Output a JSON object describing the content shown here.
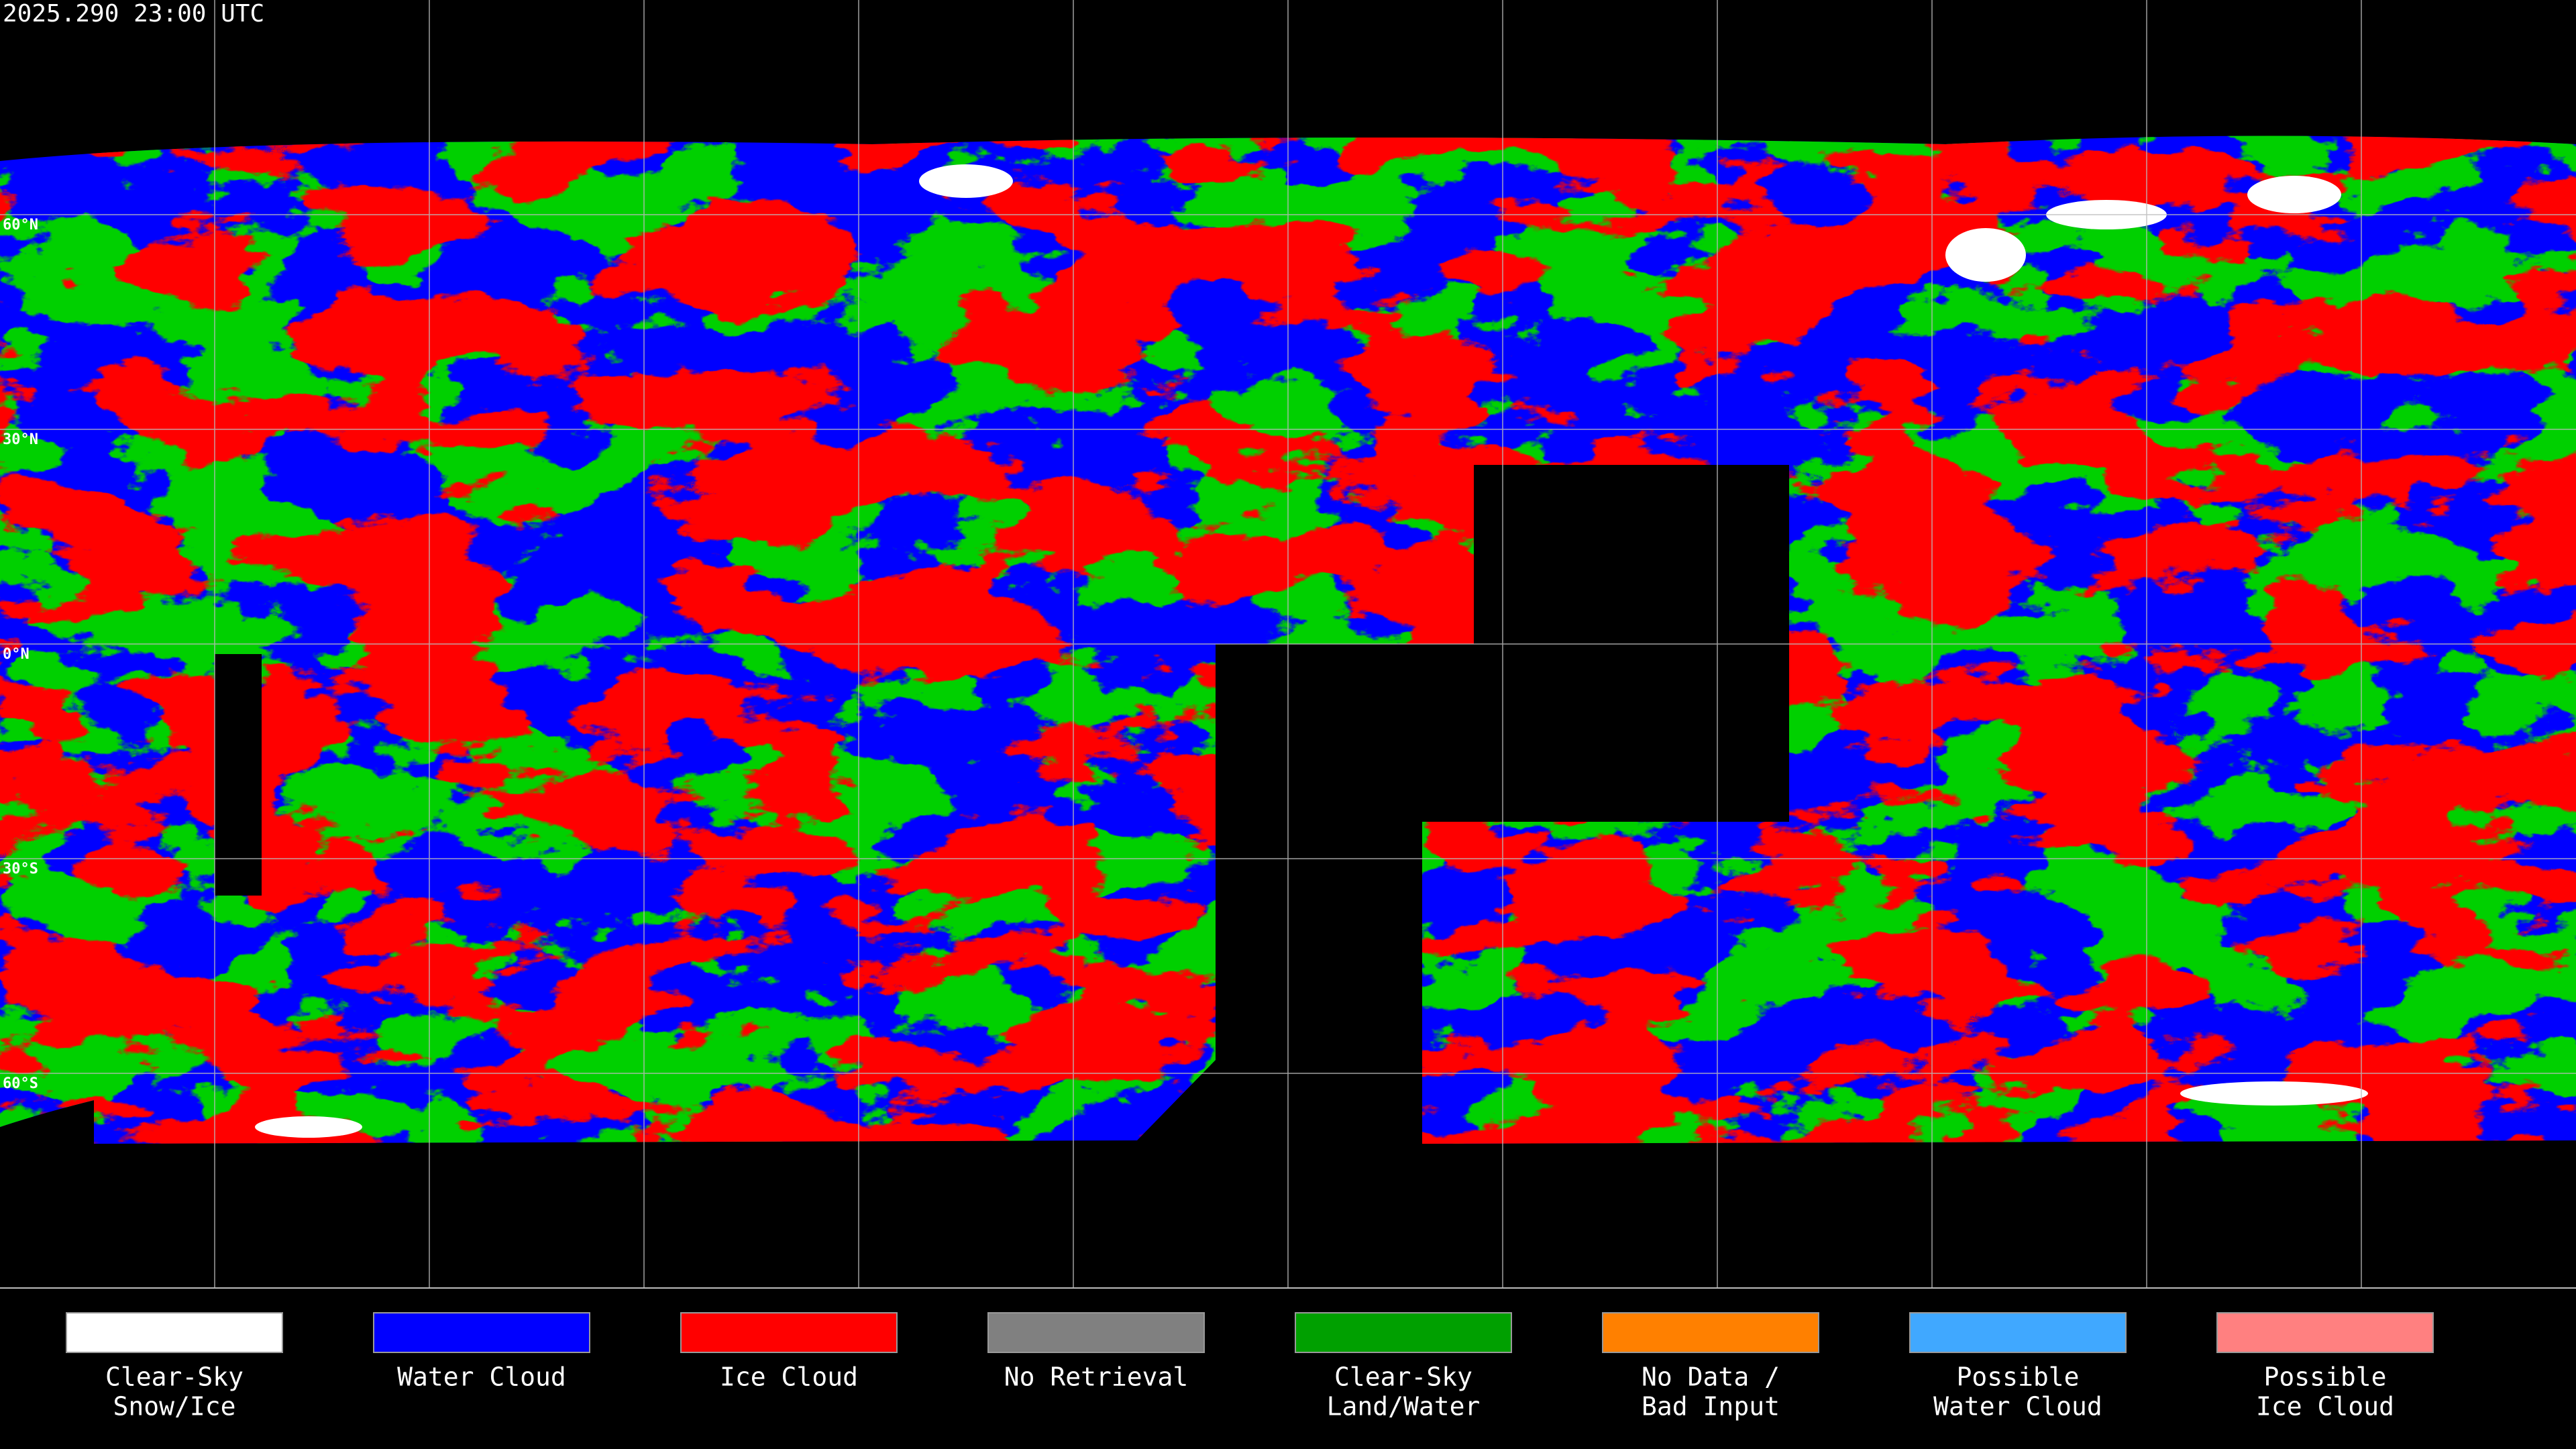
{
  "timestamp": "2025.290 23:00 UTC",
  "latitude_labels": [
    {
      "value": 60,
      "label": "60°N"
    },
    {
      "value": 30,
      "label": "30°N"
    },
    {
      "value": 0,
      "label": "0°N"
    },
    {
      "value": -30,
      "label": "30°S"
    },
    {
      "value": -60,
      "label": "60°S"
    }
  ],
  "legend": [
    {
      "label": [
        "Clear-Sky",
        "Snow/Ice"
      ],
      "color": "#ffffff"
    },
    {
      "label": [
        "Water Cloud"
      ],
      "color": "#0000ff"
    },
    {
      "label": [
        "Ice Cloud"
      ],
      "color": "#ff0000"
    },
    {
      "label": [
        "No Retrieval"
      ],
      "color": "#808080"
    },
    {
      "label": [
        "Clear-Sky",
        "Land/Water"
      ],
      "color": "#00a000"
    },
    {
      "label": [
        "No Data /",
        "Bad Input"
      ],
      "color": "#ff8000"
    },
    {
      "label": [
        "Possible",
        "Water Cloud"
      ],
      "color": "#40a8ff"
    },
    {
      "label": [
        "Possible",
        "Ice Cloud"
      ],
      "color": "#ff8080"
    }
  ]
}
